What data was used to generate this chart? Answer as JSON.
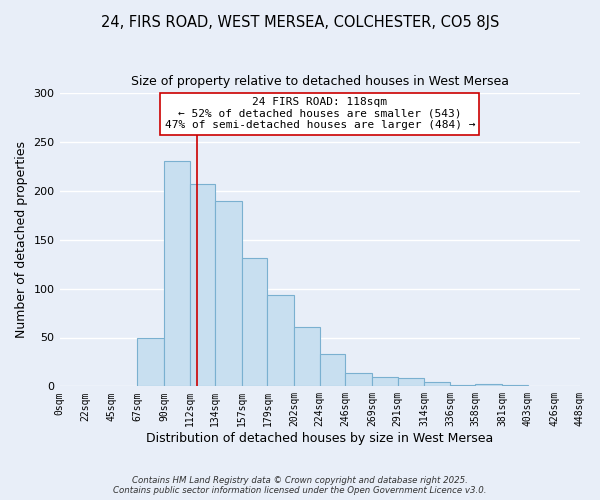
{
  "title": "24, FIRS ROAD, WEST MERSEA, COLCHESTER, CO5 8JS",
  "subtitle": "Size of property relative to detached houses in West Mersea",
  "xlabel": "Distribution of detached houses by size in West Mersea",
  "ylabel": "Number of detached properties",
  "bar_color": "#c8dff0",
  "bar_edge_color": "#7ab0d0",
  "background_color": "#e8eef8",
  "grid_color": "#ffffff",
  "bin_labels": [
    "0sqm",
    "22sqm",
    "45sqm",
    "67sqm",
    "90sqm",
    "112sqm",
    "134sqm",
    "157sqm",
    "179sqm",
    "202sqm",
    "224sqm",
    "246sqm",
    "269sqm",
    "291sqm",
    "314sqm",
    "336sqm",
    "358sqm",
    "381sqm",
    "403sqm",
    "426sqm",
    "448sqm"
  ],
  "bar_values": [
    0,
    0,
    0,
    50,
    231,
    207,
    190,
    131,
    94,
    61,
    33,
    14,
    10,
    9,
    4,
    1,
    2,
    1,
    0,
    0
  ],
  "bin_edges": [
    0,
    22,
    45,
    67,
    90,
    112,
    134,
    157,
    179,
    202,
    224,
    246,
    269,
    291,
    314,
    336,
    358,
    381,
    403,
    426,
    448
  ],
  "ylim": [
    0,
    300
  ],
  "yticks": [
    0,
    50,
    100,
    150,
    200,
    250,
    300
  ],
  "vline_x": 118,
  "vline_color": "#cc0000",
  "annotation_title": "24 FIRS ROAD: 118sqm",
  "annotation_line1": "← 52% of detached houses are smaller (543)",
  "annotation_line2": "47% of semi-detached houses are larger (484) →",
  "annotation_box_color": "#ffffff",
  "annotation_box_edge": "#cc0000",
  "footnote1": "Contains HM Land Registry data © Crown copyright and database right 2025.",
  "footnote2": "Contains public sector information licensed under the Open Government Licence v3.0."
}
